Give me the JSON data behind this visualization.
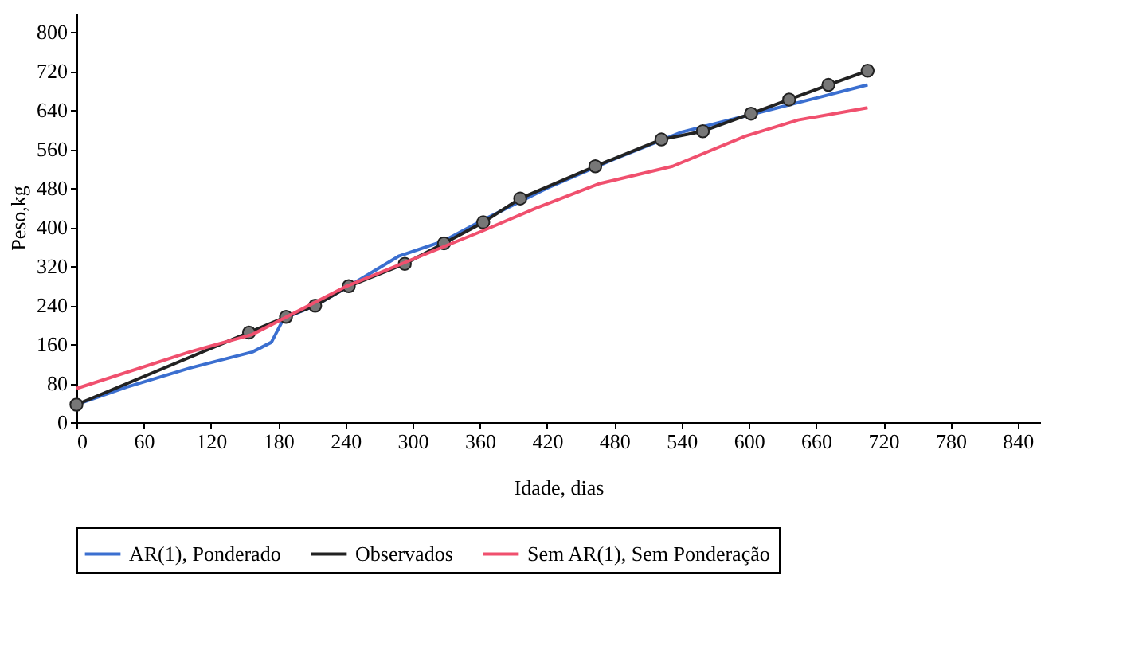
{
  "chart_data": {
    "type": "line",
    "xlabel": "Idade, dias",
    "ylabel": "Peso,kg",
    "xlim": [
      0,
      860
    ],
    "ylim": [
      0,
      840
    ],
    "xticks": [
      0,
      60,
      120,
      180,
      240,
      300,
      360,
      420,
      480,
      540,
      600,
      660,
      720,
      780,
      840
    ],
    "yticks": [
      0,
      80,
      160,
      240,
      320,
      400,
      480,
      560,
      640,
      720,
      800
    ],
    "grid": false,
    "legend": "bottom",
    "line_style": "solid",
    "series": [
      {
        "name": "AR(1), Ponderado",
        "color": "#3b6fd0",
        "marker": "none",
        "x": [
          0,
          45,
          101,
          157,
          174,
          185,
          213,
          243,
          288,
          328,
          363,
          420,
          480,
          540,
          600,
          660,
          706
        ],
        "values": [
          36,
          72,
          111,
          144,
          164,
          213,
          239,
          279,
          341,
          372,
          415,
          480,
          540,
          595,
          630,
          665,
          692
        ]
      },
      {
        "name": "Observados",
        "color": "#222222",
        "marker": "circle",
        "x": [
          0,
          154,
          187,
          213,
          243,
          293,
          328,
          363,
          396,
          463,
          522,
          559,
          602,
          636,
          671,
          706
        ],
        "values": [
          36,
          184,
          216,
          239,
          279,
          325,
          367,
          410,
          459,
          525,
          580,
          597,
          633,
          662,
          692,
          721
        ]
      },
      {
        "name": "Sem AR(1), Sem Ponderação",
        "color": "#f0506e",
        "marker": "none",
        "x": [
          0,
          101,
          157,
          241,
          363,
          410,
          466,
          532,
          597,
          644,
          706
        ],
        "values": [
          69,
          144,
          180,
          279,
          393,
          439,
          489,
          525,
          587,
          620,
          645
        ]
      }
    ]
  }
}
